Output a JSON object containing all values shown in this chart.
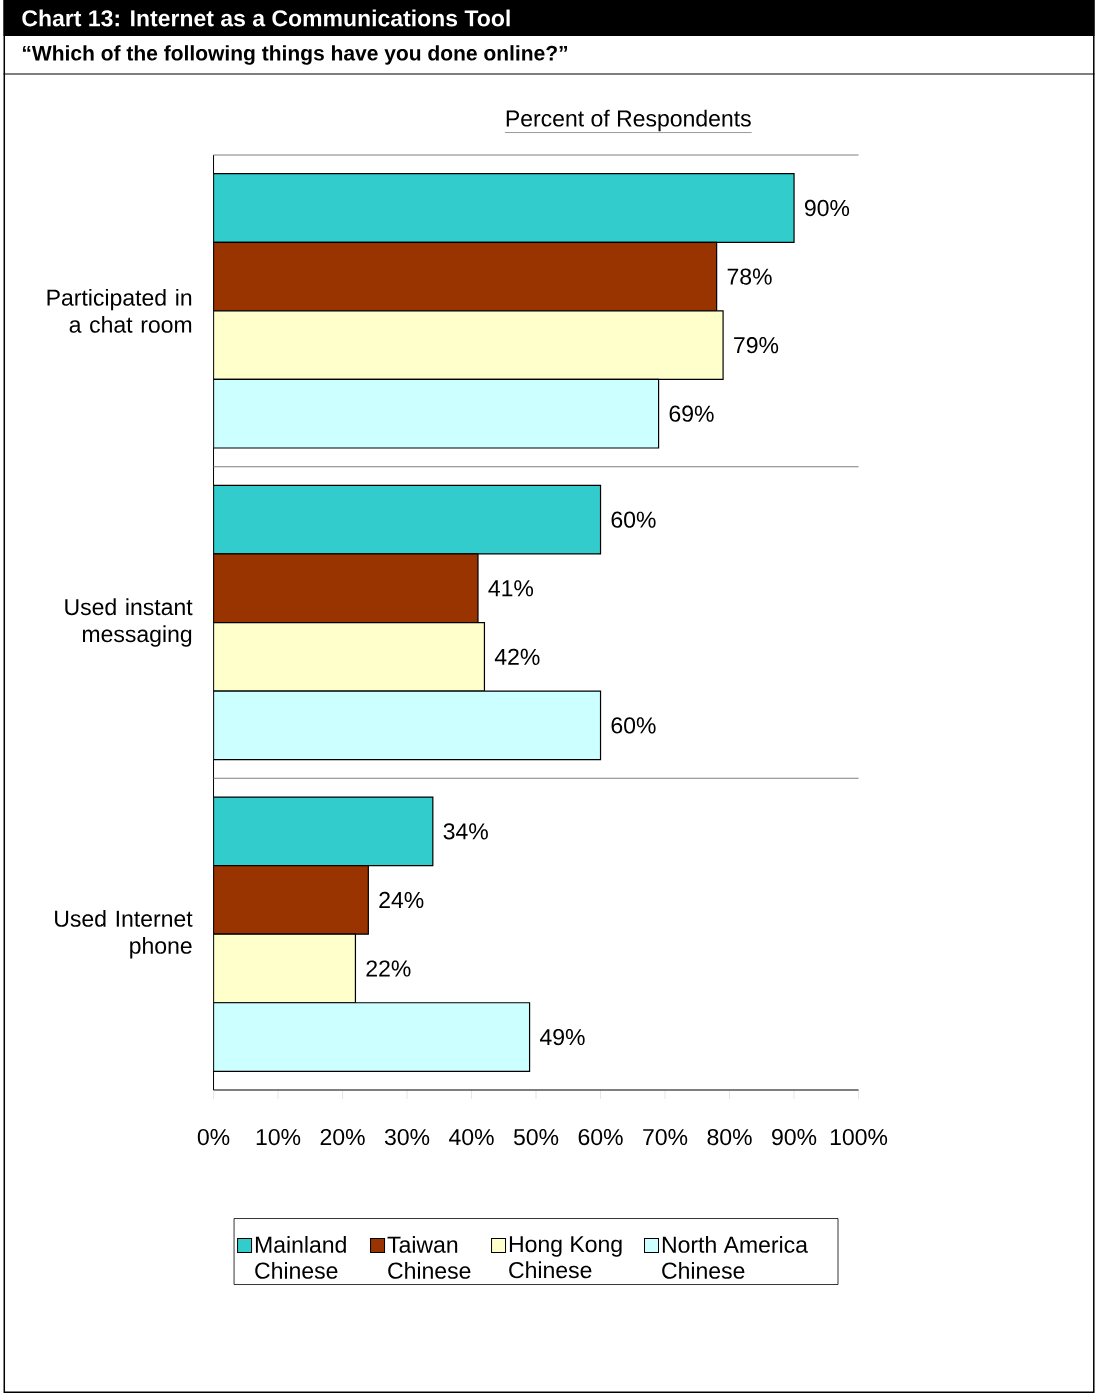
{
  "chart_data": {
    "type": "bar",
    "orientation": "horizontal",
    "title": "Chart 13: Internet as a Communications Tool",
    "subtitle": "“Which of the following things have you done online?”",
    "xlabel": "Percent of Respondents",
    "categories": [
      "Participated in a chat room",
      "Used instant messaging",
      "Used Internet phone"
    ],
    "series": [
      {
        "name": "Mainland Chinese",
        "color": "#33cccc",
        "values": [
          90,
          60,
          34
        ],
        "value_labels": [
          "90%",
          "60%",
          "34%"
        ]
      },
      {
        "name": "Taiwan Chinese",
        "color": "#993300",
        "values": [
          78,
          41,
          24
        ],
        "value_labels": [
          "78%",
          "41%",
          "24%"
        ]
      },
      {
        "name": "Hong Kong Chinese",
        "color": "#ffffcc",
        "values": [
          79,
          42,
          22
        ],
        "value_labels": [
          "79%",
          "42%",
          "22%"
        ]
      },
      {
        "name": "North America Chinese",
        "color": "#ccffff",
        "values": [
          69,
          60,
          49
        ],
        "value_labels": [
          "69%",
          "60%",
          "49%"
        ]
      }
    ],
    "xlim": [
      0,
      100
    ],
    "xticks": [
      {
        "value": 0,
        "label": "0%"
      },
      {
        "value": 10,
        "label": "10%"
      },
      {
        "value": 20,
        "label": "20%"
      },
      {
        "value": 30,
        "label": "30%"
      },
      {
        "value": 40,
        "label": "40%"
      },
      {
        "value": 50,
        "label": "50%"
      },
      {
        "value": 60,
        "label": "60%"
      },
      {
        "value": 70,
        "label": "70%"
      },
      {
        "value": 80,
        "label": "80%"
      },
      {
        "value": 90,
        "label": "90%"
      },
      {
        "value": 100,
        "label": "100%"
      }
    ],
    "grid": "y",
    "legend": "bottom"
  }
}
